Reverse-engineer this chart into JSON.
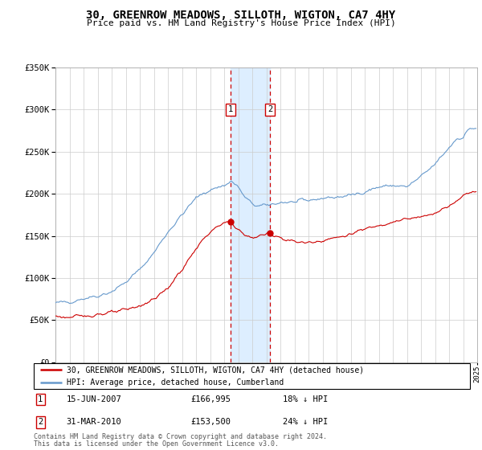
{
  "title": "30, GREENROW MEADOWS, SILLOTH, WIGTON, CA7 4HY",
  "subtitle": "Price paid vs. HM Land Registry's House Price Index (HPI)",
  "legend_line1": "30, GREENROW MEADOWS, SILLOTH, WIGTON, CA7 4HY (detached house)",
  "legend_line2": "HPI: Average price, detached house, Cumberland",
  "transaction1_date": "15-JUN-2007",
  "transaction1_price": 166995,
  "transaction1_year": 2007.46,
  "transaction2_date": "31-MAR-2010",
  "transaction2_price": 153500,
  "transaction2_year": 2010.25,
  "footnote1": "Contains HM Land Registry data © Crown copyright and database right 2024.",
  "footnote2": "This data is licensed under the Open Government Licence v3.0.",
  "hpi_color": "#6699cc",
  "price_color": "#cc0000",
  "shade_color": "#ddeeff",
  "grid_color": "#cccccc",
  "ylim_min": 0,
  "ylim_max": 350000,
  "xstart": 1995,
  "xend": 2025,
  "hpi_key_x": [
    1995,
    1996,
    1997,
    1998,
    1999,
    2000,
    2001,
    2002,
    2003,
    2004,
    2005,
    2006,
    2007,
    2007.5,
    2008,
    2008.5,
    2009,
    2009.5,
    2010,
    2010.5,
    2011,
    2012,
    2013,
    2014,
    2015,
    2016,
    2017,
    2018,
    2019,
    2020,
    2021,
    2022,
    2023,
    2023.5,
    2024,
    2024.5
  ],
  "hpi_key_y": [
    70000,
    72000,
    76000,
    79000,
    84000,
    95000,
    110000,
    130000,
    155000,
    175000,
    195000,
    205000,
    210000,
    215000,
    208000,
    195000,
    188000,
    185000,
    186000,
    188000,
    190000,
    190000,
    192000,
    195000,
    196000,
    198000,
    203000,
    208000,
    210000,
    208000,
    220000,
    235000,
    255000,
    265000,
    268000,
    278000
  ],
  "price_key_x": [
    1995,
    1996,
    1997,
    1998,
    1999,
    2000,
    2001,
    2002,
    2003,
    2004,
    2005,
    2006,
    2007,
    2007.46,
    2008,
    2008.5,
    2009,
    2010,
    2010.25,
    2011,
    2012,
    2013,
    2014,
    2015,
    2016,
    2017,
    2018,
    2019,
    2020,
    2021,
    2022,
    2023,
    2024,
    2024.5
  ],
  "price_key_y": [
    55000,
    53000,
    55000,
    57000,
    59000,
    62000,
    67000,
    75000,
    88000,
    110000,
    135000,
    155000,
    165000,
    166995,
    158000,
    150000,
    148000,
    152000,
    153500,
    148000,
    143000,
    142000,
    145000,
    148000,
    152000,
    158000,
    163000,
    167000,
    170000,
    172000,
    178000,
    185000,
    198000,
    203000
  ]
}
